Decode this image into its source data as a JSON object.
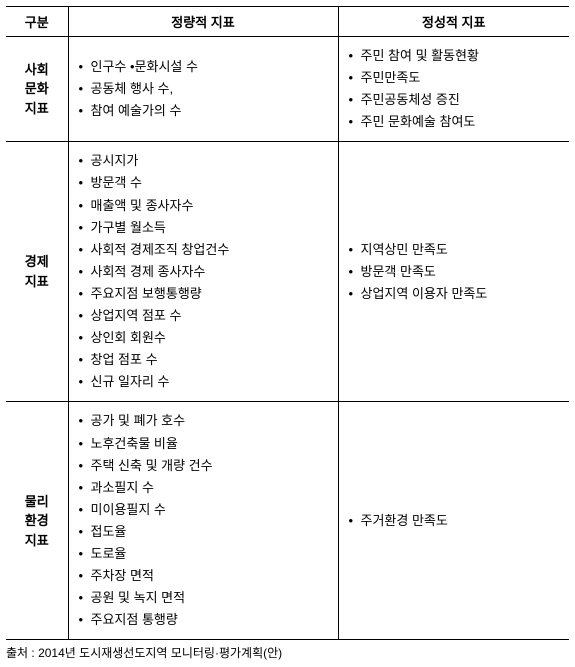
{
  "table": {
    "headers": [
      "구분",
      "정량적 지표",
      "정성적 지표"
    ],
    "rows": [
      {
        "category": "사회\n문화\n지표",
        "quantitative": [
          "인구수  •문화시설 수",
          "공동체 행사 수,",
          "참여 예술가의 수"
        ],
        "qualitative": [
          "주민 참여 및 활동현황",
          "주민만족도",
          "주민공동체성 증진",
          "주민 문화예술 참여도"
        ]
      },
      {
        "category": "경제\n지표",
        "quantitative": [
          "공시지가",
          "방문객 수",
          "매출액 및 종사자수",
          "가구별 월소득",
          "사회적 경제조직 창업건수",
          "사회적 경제 종사자수",
          "주요지점 보행통행량",
          "상업지역 점포 수",
          "상인회 회원수",
          "창업 점포 수",
          "신규 일자리 수"
        ],
        "qualitative": [
          "지역상민 만족도",
          "방문객 만족도",
          "상업지역 이용자 만족도"
        ]
      },
      {
        "category": "물리\n환경\n지표",
        "quantitative": [
          "공가 및 폐가 호수",
          "노후건축물 비율",
          "주택 신축 및 개량 건수",
          "과소필지 수",
          "미이용필지 수",
          "접도율",
          "도로율",
          "주차장 면적",
          "공원 및 녹지 면적",
          "주요지점 통행량"
        ],
        "qualitative": [
          "주거환경 만족도"
        ]
      }
    ]
  },
  "caption": "출처 : 2014년 도시재생선도지역 모니터링·평가계획(안)"
}
